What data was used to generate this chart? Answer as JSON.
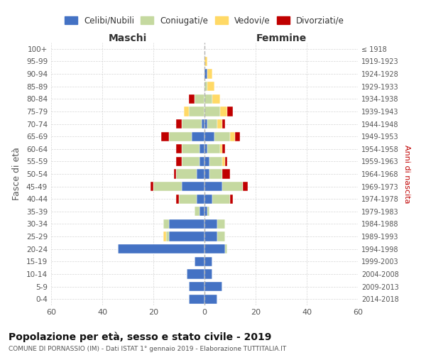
{
  "age_groups": [
    "100+",
    "95-99",
    "90-94",
    "85-89",
    "80-84",
    "75-79",
    "70-74",
    "65-69",
    "60-64",
    "55-59",
    "50-54",
    "45-49",
    "40-44",
    "35-39",
    "30-34",
    "25-29",
    "20-24",
    "15-19",
    "10-14",
    "5-9",
    "0-4"
  ],
  "birth_years": [
    "≤ 1918",
    "1919-1923",
    "1924-1928",
    "1929-1933",
    "1934-1938",
    "1939-1943",
    "1944-1948",
    "1949-1953",
    "1954-1958",
    "1959-1963",
    "1964-1968",
    "1969-1973",
    "1974-1978",
    "1979-1983",
    "1984-1988",
    "1989-1993",
    "1994-1998",
    "1999-2003",
    "2004-2008",
    "2009-2013",
    "2014-2018"
  ],
  "males": {
    "celibi": [
      0,
      0,
      0,
      0,
      0,
      0,
      1,
      5,
      2,
      2,
      3,
      9,
      3,
      2,
      14,
      14,
      34,
      4,
      7,
      6,
      6
    ],
    "coniugati": [
      0,
      0,
      0,
      0,
      4,
      6,
      8,
      9,
      7,
      7,
      8,
      11,
      7,
      2,
      2,
      1,
      0,
      0,
      0,
      0,
      0
    ],
    "vedovi": [
      0,
      0,
      0,
      0,
      0,
      2,
      0,
      0,
      0,
      0,
      0,
      0,
      0,
      0,
      0,
      1,
      0,
      0,
      0,
      0,
      0
    ],
    "divorziati": [
      0,
      0,
      0,
      0,
      2,
      0,
      2,
      3,
      2,
      2,
      1,
      1,
      1,
      0,
      0,
      0,
      0,
      0,
      0,
      0,
      0
    ]
  },
  "females": {
    "nubili": [
      0,
      0,
      1,
      0,
      0,
      0,
      1,
      4,
      1,
      2,
      2,
      7,
      3,
      1,
      5,
      5,
      8,
      3,
      3,
      7,
      5
    ],
    "coniugate": [
      0,
      0,
      0,
      1,
      3,
      6,
      4,
      6,
      5,
      5,
      5,
      8,
      7,
      1,
      3,
      3,
      1,
      0,
      0,
      0,
      0
    ],
    "vedove": [
      0,
      1,
      2,
      3,
      3,
      3,
      2,
      2,
      1,
      1,
      0,
      0,
      0,
      0,
      0,
      0,
      0,
      0,
      0,
      0,
      0
    ],
    "divorziate": [
      0,
      0,
      0,
      0,
      0,
      2,
      1,
      2,
      1,
      1,
      3,
      2,
      1,
      0,
      0,
      0,
      0,
      0,
      0,
      0,
      0
    ]
  },
  "colors": {
    "celibi_nubili": "#4472C4",
    "coniugati": "#C5D9A0",
    "vedovi": "#FFD966",
    "divorziati": "#C00000"
  },
  "xlim": 60,
  "title": "Popolazione per età, sesso e stato civile - 2019",
  "subtitle": "COMUNE DI PORNASSIO (IM) - Dati ISTAT 1° gennaio 2019 - Elaborazione TUTTITALIA.IT",
  "ylabel_left": "Fasce di età",
  "ylabel_right": "Anni di nascita",
  "xlabel_left": "Maschi",
  "xlabel_right": "Femmine",
  "bg_color": "#ffffff",
  "grid_color": "#cccccc"
}
